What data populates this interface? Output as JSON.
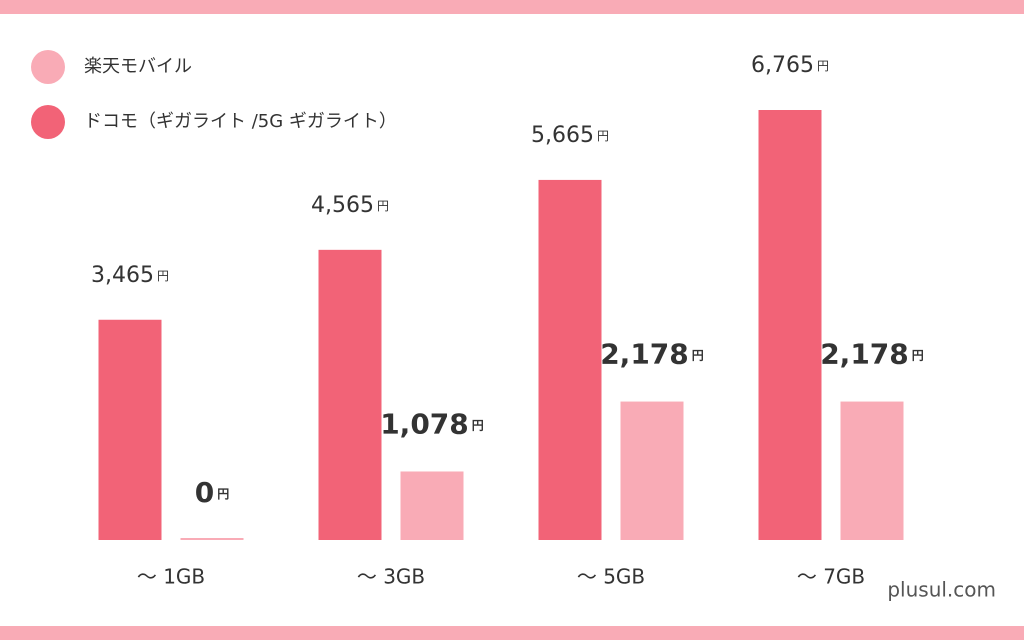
{
  "chart_data": {
    "type": "bar",
    "categories": [
      "～ 1GB",
      "～ 3GB",
      "～ 5GB",
      "～ 7GB"
    ],
    "unit": "円",
    "series": [
      {
        "name": "楽天モバイル",
        "color": "#f9abb6",
        "values": [
          0,
          1078,
          2178,
          2178
        ],
        "value_labels": [
          "0",
          "1,078",
          "2,178",
          "2,178"
        ]
      },
      {
        "name": "ドコモ（ギガライト /5G ギガライト）",
        "color": "#f26377",
        "values": [
          3465,
          4565,
          5665,
          6765
        ],
        "value_labels": [
          "3,465",
          "4,565",
          "5,665",
          "6,765"
        ]
      }
    ],
    "watermark": "plusul.com"
  }
}
